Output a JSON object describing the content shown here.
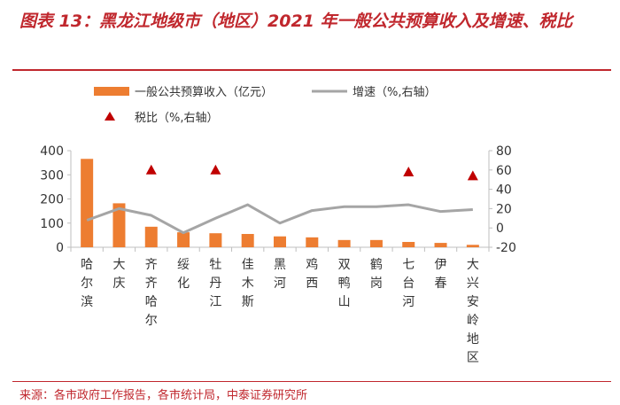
{
  "title": "图表 13：黑龙江地级市（地区）2021 年一般公共预算收入及增速、税比",
  "source": "来源：各市政府工作报告，各市统计局，中泰证券研究所",
  "colors": {
    "bar": "#ed7d31",
    "line": "#a5a5a5",
    "marker": "#c00000",
    "accent": "#c0272d"
  },
  "chart_data": {
    "type": "bar",
    "categories": [
      "哈尔滨",
      "大庆",
      "齐齐哈尔",
      "绥化",
      "牡丹江",
      "佳木斯",
      "黑河",
      "鸡西",
      "双鸭山",
      "鹤岗",
      "七台河",
      "伊春",
      "大兴安岭地区"
    ],
    "series": [
      {
        "name": "一般公共预算收入（亿元）",
        "type": "bar",
        "axis": "left",
        "values": [
          366,
          182,
          85,
          62,
          58,
          55,
          45,
          41,
          30,
          30,
          22,
          18,
          10
        ]
      },
      {
        "name": "增速（%,右轴）",
        "type": "line",
        "axis": "right",
        "values": [
          8,
          20,
          13,
          -5,
          10,
          24,
          5,
          18,
          22,
          22,
          24,
          17,
          19
        ]
      },
      {
        "name": "税比（%,右轴）",
        "type": "marker",
        "axis": "right",
        "values": [
          null,
          null,
          60,
          null,
          60,
          null,
          null,
          null,
          null,
          null,
          58,
          null,
          54
        ]
      }
    ],
    "yleft": {
      "ticks": [
        "0",
        "100",
        "200",
        "300",
        "400"
      ],
      "lim": [
        0,
        400
      ]
    },
    "yright": {
      "ticks": [
        "-20",
        "0",
        "20",
        "40",
        "60",
        "80"
      ],
      "lim": [
        -20,
        80
      ]
    },
    "legend": "top"
  }
}
